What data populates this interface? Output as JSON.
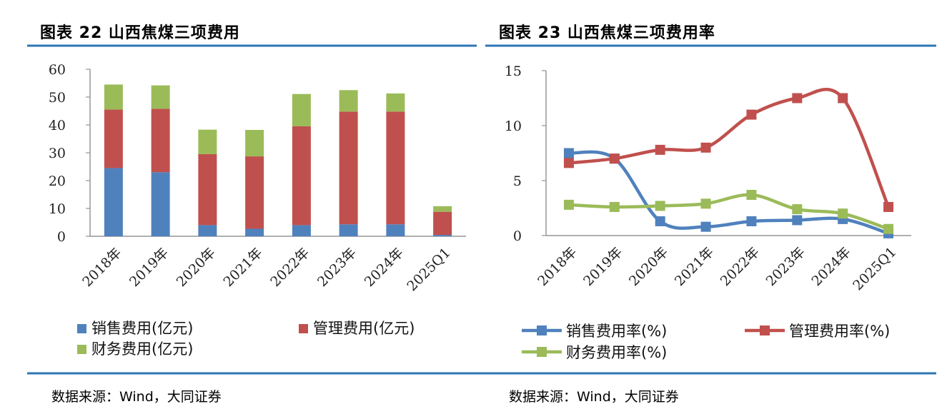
{
  "left": {
    "title": "图表 22 山西焦煤三项费用",
    "source": "数据来源：Wind，大同证券"
  },
  "right": {
    "title": "图表 23 山西焦煤三项费用率",
    "source": "数据来源：Wind，大同证券"
  },
  "colors": {
    "rule": "#2e75b6"
  },
  "chart_data": [
    {
      "type": "bar",
      "stacked": true,
      "categories": [
        "2018年",
        "2019年",
        "2020年",
        "2021年",
        "2022年",
        "2023年",
        "2024年",
        "2025Q1"
      ],
      "ylim": [
        0,
        60
      ],
      "yticks": [
        0,
        10,
        20,
        30,
        40,
        50,
        60
      ],
      "grid": false,
      "legend_position": "bottom",
      "series": [
        {
          "name": "销售费用(亿元)",
          "color": "#4f81bd",
          "values": [
            24.5,
            23.0,
            4.0,
            2.7,
            4.0,
            4.3,
            4.3,
            0.5
          ]
        },
        {
          "name": "管理费用(亿元)",
          "color": "#c0504d",
          "values": [
            21.0,
            22.8,
            25.5,
            26.0,
            35.5,
            40.5,
            40.5,
            8.3
          ]
        },
        {
          "name": "财务费用(亿元)",
          "color": "#9bbb59",
          "values": [
            9.0,
            8.4,
            8.8,
            9.5,
            11.6,
            7.7,
            6.5,
            2.0
          ]
        }
      ]
    },
    {
      "type": "line",
      "smooth": true,
      "categories": [
        "2018年",
        "2019年",
        "2020年",
        "2021年",
        "2022年",
        "2023年",
        "2024年",
        "2025Q1"
      ],
      "ylim": [
        0,
        15
      ],
      "yticks": [
        0,
        5,
        10,
        15
      ],
      "grid": false,
      "legend_position": "bottom",
      "series": [
        {
          "name": "销售费用率(%)",
          "color": "#4f81bd",
          "values": [
            7.5,
            7.0,
            1.3,
            0.8,
            1.3,
            1.4,
            1.5,
            0.2
          ]
        },
        {
          "name": "管理费用率(%)",
          "color": "#c0504d",
          "values": [
            6.6,
            7.0,
            7.8,
            8.0,
            11.0,
            12.5,
            12.5,
            2.6
          ]
        },
        {
          "name": "财务费用率(%)",
          "color": "#9bbb59",
          "values": [
            2.8,
            2.6,
            2.7,
            2.9,
            3.7,
            2.4,
            2.0,
            0.6
          ]
        }
      ]
    }
  ]
}
